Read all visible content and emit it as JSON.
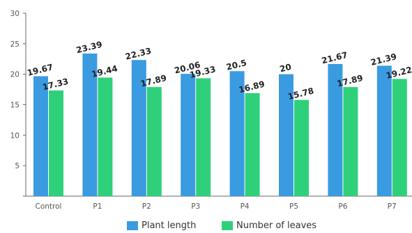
{
  "chart_data": {
    "type": "bar",
    "categories": [
      "Control",
      "P1",
      "P2",
      "P3",
      "P4",
      "P5",
      "P6",
      "P7"
    ],
    "series": [
      {
        "name": "Plant length",
        "values": [
          19.67,
          23.39,
          22.33,
          20.06,
          20.5,
          20,
          21.67,
          21.39
        ],
        "labels": [
          "19.67",
          "23.39",
          "22.33",
          "20.06",
          "20.5",
          "20",
          "21.67",
          "21.39"
        ],
        "color": "#3a9be0"
      },
      {
        "name": "Number of leaves",
        "values": [
          17.33,
          19.44,
          17.89,
          19.33,
          16.89,
          15.78,
          17.89,
          19.22
        ],
        "labels": [
          "17.33",
          "19.44",
          "17.89",
          "19.33",
          "16.89",
          "15.78",
          "17.89",
          "19.22"
        ],
        "color": "#2fd07a"
      }
    ],
    "yticks": [
      "0",
      "5",
      "10",
      "15",
      "20",
      "25",
      "30"
    ],
    "ylim": [
      0,
      30
    ],
    "title": "",
    "xlabel": "",
    "ylabel": "",
    "grid": false,
    "legend_position": "bottom"
  }
}
